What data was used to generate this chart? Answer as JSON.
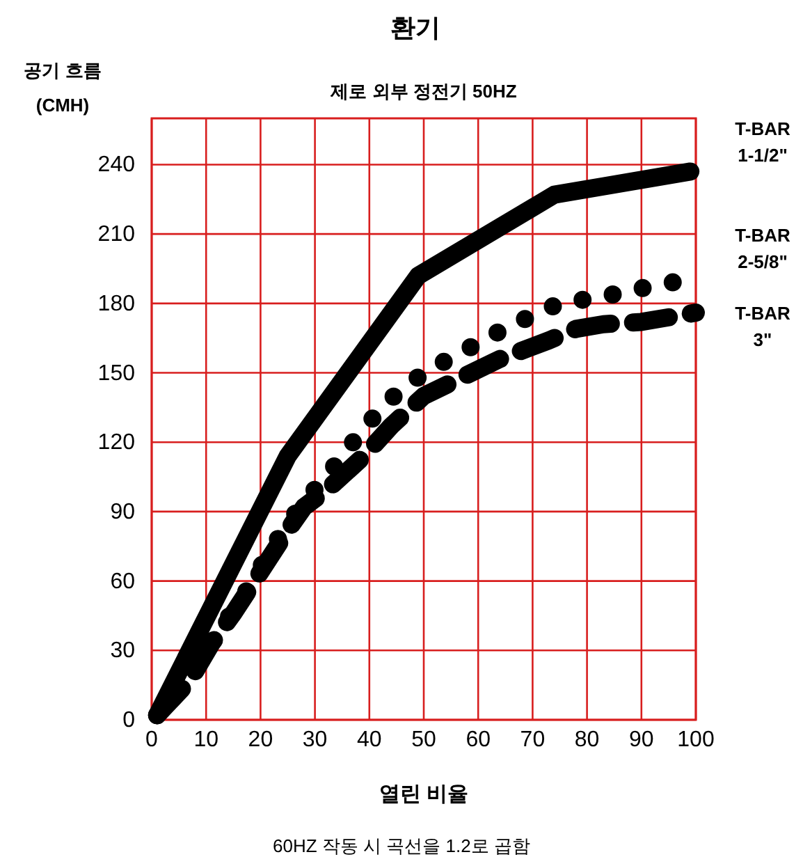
{
  "chart_data": {
    "type": "line",
    "title": "환기",
    "subtitle": "제로 외부 정전기 50HZ",
    "xlabel": "열린 비율",
    "ylabel": "공기 흐름 (CMH)",
    "annotations": [
      "60HZ 작동 시 곡선을 1.2로 곱함"
    ],
    "xlim": [
      0,
      100
    ],
    "ylim": [
      0,
      260
    ],
    "xticks": [
      0,
      10,
      20,
      30,
      40,
      50,
      60,
      70,
      80,
      90,
      100
    ],
    "yticks": [
      0,
      30,
      60,
      90,
      120,
      150,
      180,
      210,
      240
    ],
    "grid": true,
    "series": [
      {
        "name": "T-BAR 1-1/2\"",
        "color": "#000000",
        "line_style": "solid",
        "x": [
          1,
          25,
          49,
          74,
          99
        ],
        "values": [
          2,
          114,
          192,
          227,
          237
        ]
      },
      {
        "name": "T-BAR 2-5/8\"",
        "color": "#000000",
        "line_style": "dotted",
        "x": [
          1,
          7,
          12,
          16,
          20,
          25,
          28,
          33,
          38,
          43,
          50,
          57,
          64,
          71,
          75,
          83,
          91,
          100
        ],
        "values": [
          2,
          18,
          38,
          50,
          66,
          85,
          94,
          108,
          123,
          137,
          150,
          159,
          168,
          176,
          180,
          183,
          187,
          191
        ]
      },
      {
        "name": "T-BAR 3\"",
        "color": "#000000",
        "line_style": "dashed",
        "x": [
          1,
          7,
          11,
          15,
          20,
          25,
          28,
          32,
          39,
          44,
          50,
          57,
          64,
          73,
          78,
          83,
          90,
          100
        ],
        "values": [
          2,
          17,
          33,
          46,
          64,
          82,
          92,
          99,
          114,
          127,
          140,
          148,
          156,
          164,
          169,
          171,
          172,
          176
        ]
      }
    ]
  }
}
